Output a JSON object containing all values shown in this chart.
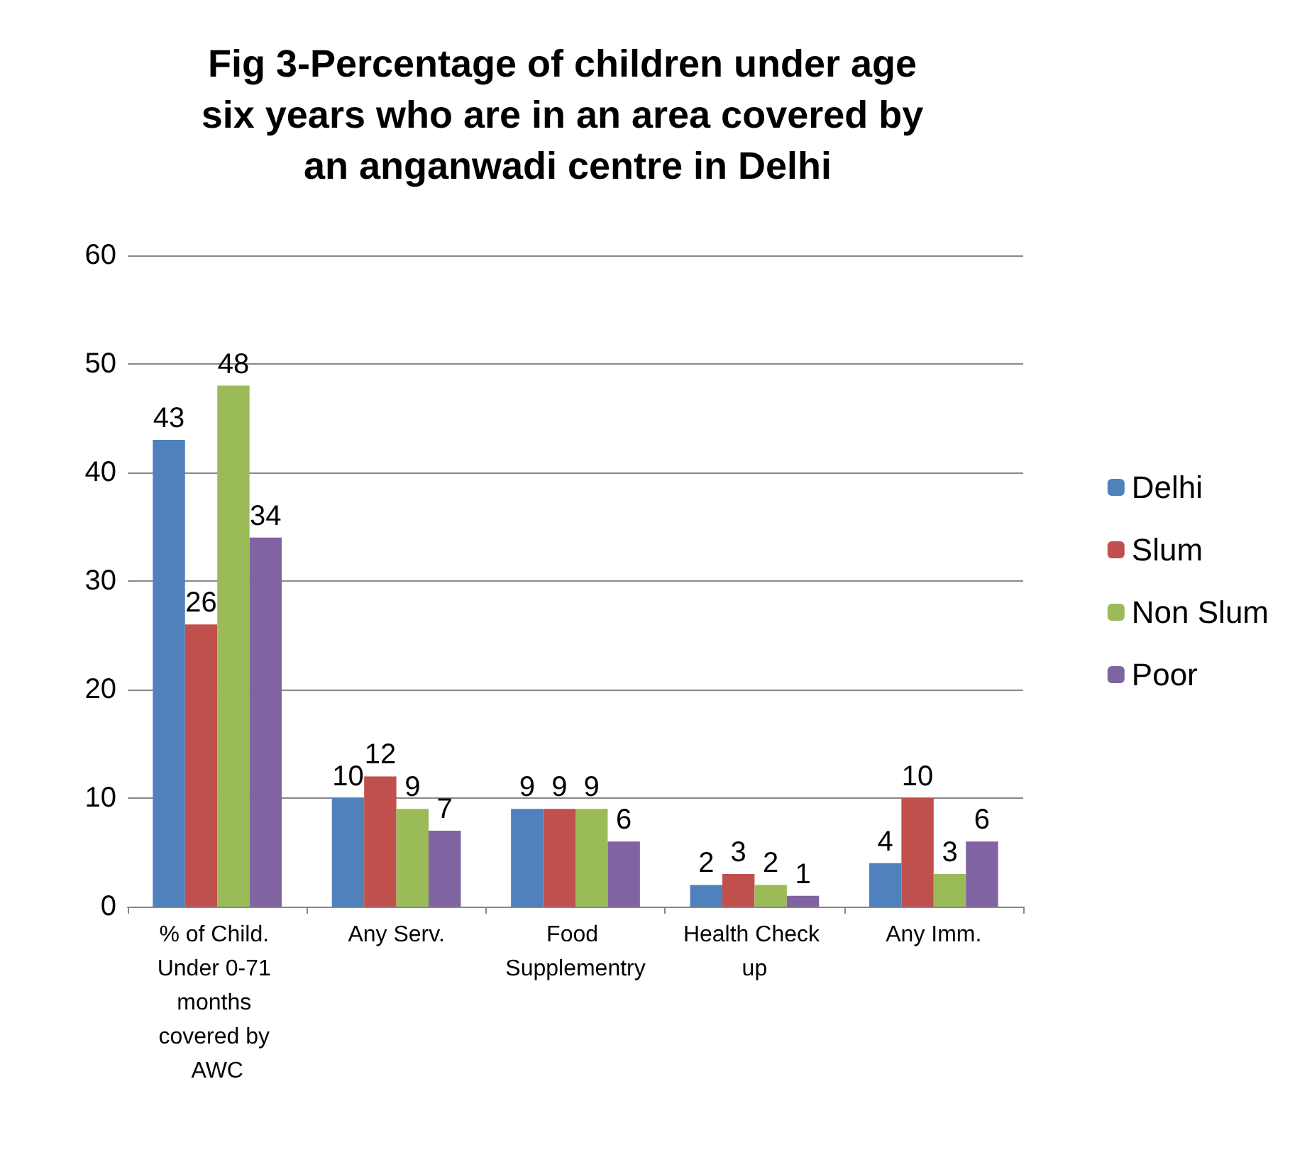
{
  "chart_data": {
    "type": "bar",
    "title": "Fig 3-Percentage of children under age six years who are in an area covered by an anganwadi centre in Delhi",
    "categories": [
      "% of Child. Under 0-71 months covered by AWC",
      "Any Serv.",
      "Food Supplementry",
      "Health Check up",
      "Any Imm."
    ],
    "series": [
      {
        "name": "Delhi",
        "color": "#4f81bd",
        "values": [
          43,
          10,
          9,
          2,
          4
        ]
      },
      {
        "name": "Slum",
        "color": "#c0504d",
        "values": [
          26,
          12,
          9,
          3,
          10
        ]
      },
      {
        "name": "Non Slum",
        "color": "#9bbb59",
        "values": [
          48,
          9,
          9,
          2,
          3
        ]
      },
      {
        "name": "Poor",
        "color": "#8064a2",
        "values": [
          34,
          7,
          6,
          1,
          6
        ]
      }
    ],
    "ylim": [
      0,
      60
    ],
    "yticks": [
      0,
      10,
      20,
      30,
      40,
      50,
      60
    ],
    "grid": "y",
    "legend": "right",
    "data_labels": true
  }
}
